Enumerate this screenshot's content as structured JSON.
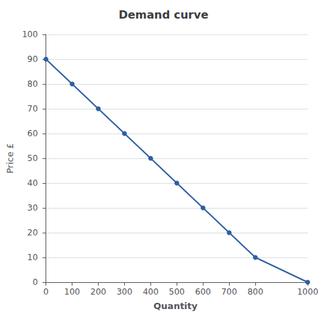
{
  "chart_data": {
    "type": "line",
    "title": "Demand curve",
    "xlabel": "Quantity",
    "ylabel": "Price £",
    "x": [
      0,
      100,
      200,
      300,
      400,
      500,
      600,
      700,
      800,
      1000
    ],
    "values": [
      90,
      80,
      70,
      60,
      50,
      40,
      30,
      20,
      10,
      0
    ],
    "color": "#2e5fa3",
    "marker": "circle",
    "xlim": [
      -10,
      1000
    ],
    "ylim": [
      0,
      100
    ],
    "xticks": [
      0,
      100,
      200,
      300,
      400,
      500,
      600,
      700,
      800,
      1000
    ],
    "yticks": [
      0,
      10,
      20,
      30,
      40,
      50,
      60,
      70,
      80,
      90,
      100
    ],
    "grid": "y"
  }
}
